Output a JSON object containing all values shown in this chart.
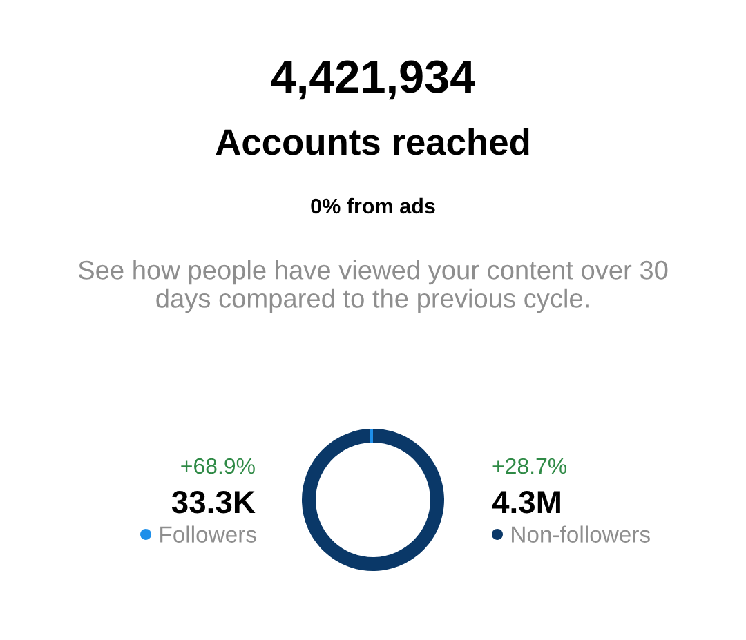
{
  "chart_data": {
    "type": "donut",
    "title": "4,421,934",
    "subtitle": "Accounts reached",
    "annotations": [
      "0% from ads",
      "See how people have viewed your content over 30\ndays compared to the previous cycle.",
      "+68.9%",
      "+28.7%"
    ],
    "categories": [
      "Followers",
      "Non-followers"
    ],
    "values": [
      33300,
      4300000
    ],
    "value_labels": [
      "33.3K",
      "4.3M"
    ],
    "colors": [
      "#1e8fea",
      "#0a3868"
    ],
    "legend": "bottom"
  }
}
